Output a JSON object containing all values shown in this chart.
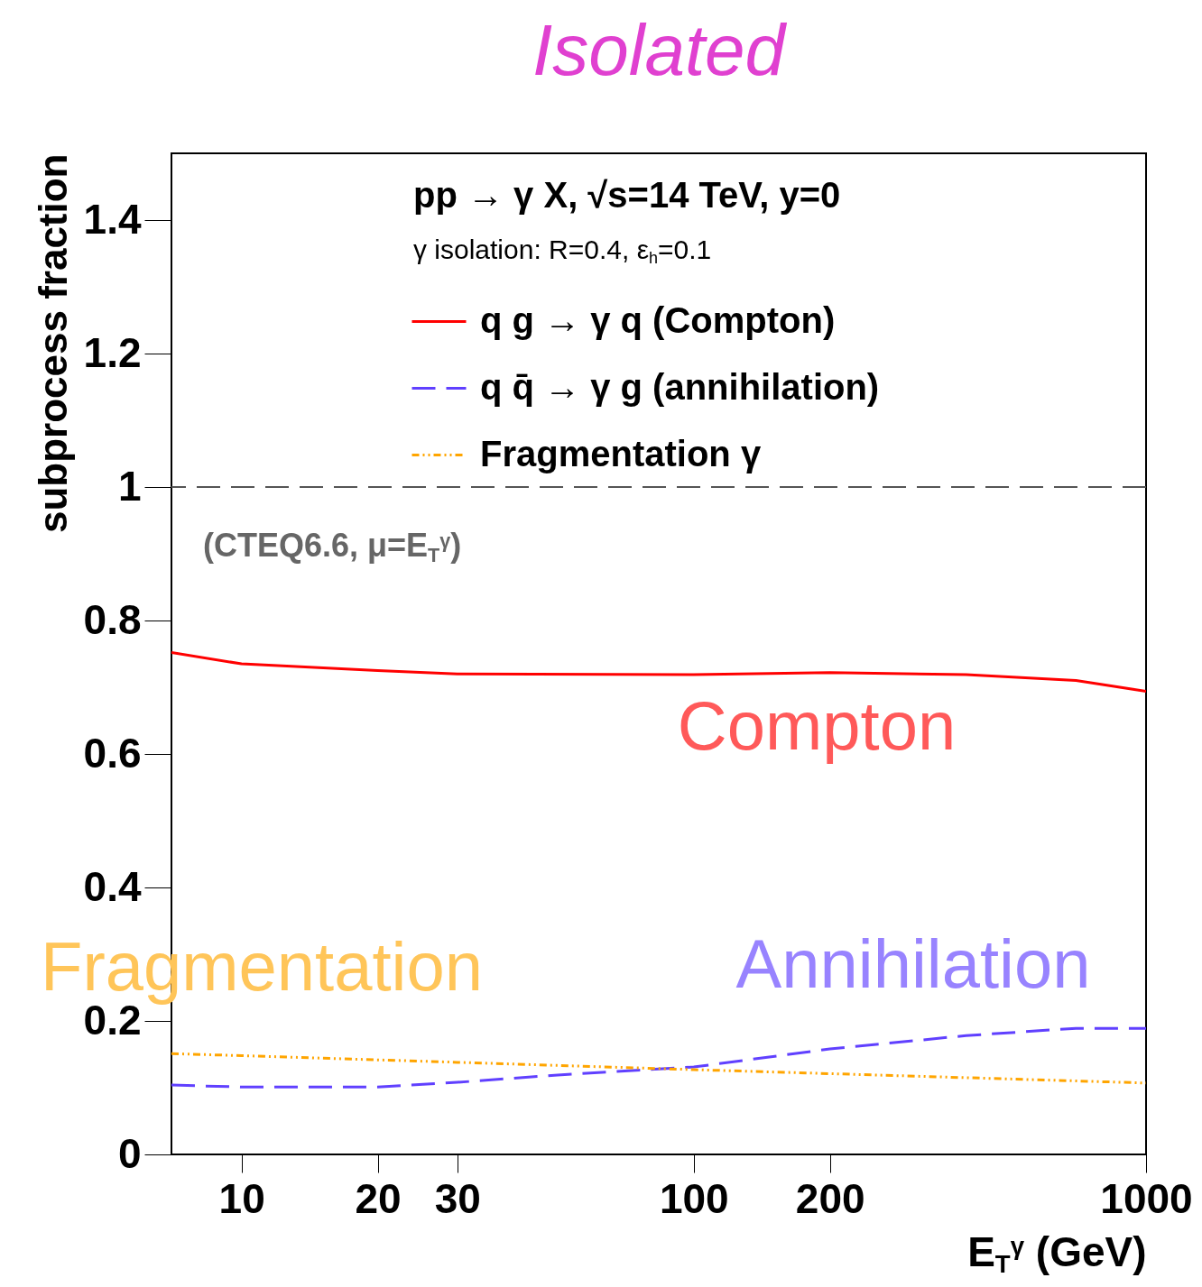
{
  "chart_data": {
    "type": "line",
    "title": "Isolated",
    "xlabel": "E$_{T}$$^{γ}$ (GeV)",
    "ylabel": "subprocess fraction",
    "log": "x",
    "xlim": [
      7,
      1000
    ],
    "xticks": [
      10,
      20,
      30,
      100,
      200,
      1000
    ],
    "ylim": [
      0,
      1.5
    ],
    "yticks": [
      0,
      0.2,
      0.4,
      0.6,
      0.8,
      1,
      1.2,
      1.4
    ],
    "legend": "top",
    "series": [
      {
        "name": "q g → γ q (Compton)",
        "color": "#ff0000",
        "line_style": "solid",
        "x": [
          7,
          10,
          20,
          30,
          100,
          200,
          400,
          700,
          1000
        ],
        "values": [
          0.752,
          0.735,
          0.725,
          0.72,
          0.719,
          0.722,
          0.719,
          0.71,
          0.694
        ]
      },
      {
        "name": "q q̄ → γ g (annihilation)",
        "color": "#6040ff",
        "line_style": "dashed",
        "x": [
          7,
          10,
          20,
          30,
          50,
          100,
          200,
          400,
          700,
          1000
        ],
        "values": [
          0.104,
          0.101,
          0.101,
          0.108,
          0.119,
          0.131,
          0.158,
          0.178,
          0.189,
          0.189
        ]
      },
      {
        "name": "Fragmentation γ",
        "color": "#ffa500",
        "line_style": "dotted",
        "x": [
          7,
          10,
          30,
          100,
          200,
          400,
          1000
        ],
        "values": [
          0.151,
          0.148,
          0.138,
          0.127,
          0.121,
          0.115,
          0.107
        ]
      }
    ],
    "ref_lines": [
      {
        "axis": "y",
        "value": 1,
        "color": "#555555",
        "line_style": "dashed"
      }
    ],
    "annotations": [
      "pp → γ X, √s=14 TeV, y=0",
      "γ isolation: R=0.4, ε$_{h}$=0.1",
      "(CTEQ6.6, μ=E$_{T}$$^{γ}$)",
      "Compton",
      "Annihilation",
      "Fragmentation"
    ]
  }
}
